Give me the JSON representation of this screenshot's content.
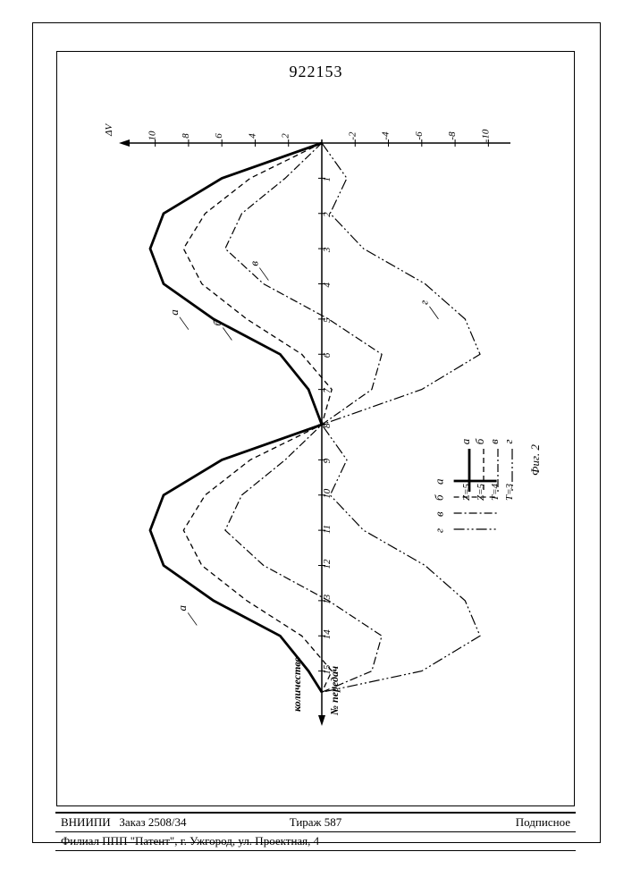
{
  "patent_number": "922153",
  "chart": {
    "type": "line",
    "y_axis": {
      "label": "ΔV",
      "ticks": [
        10,
        8,
        6,
        4,
        2,
        -2,
        -4,
        -6,
        -8,
        -10
      ],
      "range": [
        -11,
        11
      ]
    },
    "x_axis": {
      "label_top": "количество",
      "label_bottom": "№ передач",
      "ticks": [
        1,
        2,
        3,
        4,
        5,
        6,
        7,
        8,
        9,
        10,
        11,
        12,
        13,
        14,
        15
      ],
      "range": [
        0,
        16
      ]
    },
    "series": [
      {
        "id": "a",
        "label": "а",
        "legend_value": "Z=5",
        "stroke": "#000",
        "stroke_width": 2.8,
        "dash": "",
        "points": [
          [
            0,
            0
          ],
          [
            1,
            6
          ],
          [
            2,
            9.5
          ],
          [
            3,
            10.3
          ],
          [
            4,
            9.5
          ],
          [
            5,
            6.5
          ],
          [
            6,
            2.5
          ],
          [
            7,
            0.8
          ],
          [
            8,
            0
          ],
          [
            9,
            6
          ],
          [
            10,
            9.5
          ],
          [
            11,
            10.3
          ],
          [
            12,
            9.5
          ],
          [
            13,
            6.5
          ],
          [
            14,
            2.5
          ],
          [
            15,
            0.8
          ],
          [
            15.6,
            0
          ]
        ]
      },
      {
        "id": "b",
        "label": "б",
        "legend_value": "Z=5",
        "stroke": "#000",
        "stroke_width": 1.3,
        "dash": "6,4",
        "points": [
          [
            0,
            0
          ],
          [
            1,
            4.3
          ],
          [
            2,
            7
          ],
          [
            3,
            8.3
          ],
          [
            4,
            7.2
          ],
          [
            5,
            4.5
          ],
          [
            6,
            1.2
          ],
          [
            7,
            -0.6
          ],
          [
            8,
            0
          ],
          [
            9,
            4.3
          ],
          [
            10,
            7
          ],
          [
            11,
            8.3
          ],
          [
            12,
            7.2
          ],
          [
            13,
            4.5
          ],
          [
            14,
            1.2
          ],
          [
            15,
            -0.6
          ],
          [
            15.6,
            0
          ]
        ]
      },
      {
        "id": "v",
        "label": "в",
        "legend_value": "T=4",
        "stroke": "#000",
        "stroke_width": 1.2,
        "dash": "9,3,2,3",
        "points": [
          [
            0,
            0
          ],
          [
            1,
            2.2
          ],
          [
            2,
            4.8
          ],
          [
            3,
            5.8
          ],
          [
            4,
            3.5
          ],
          [
            5,
            -0.4
          ],
          [
            6,
            -3.6
          ],
          [
            7,
            -3.0
          ],
          [
            8,
            0
          ],
          [
            9,
            2.2
          ],
          [
            10,
            4.8
          ],
          [
            11,
            5.8
          ],
          [
            12,
            3.5
          ],
          [
            13,
            -0.4
          ],
          [
            14,
            -3.6
          ],
          [
            15,
            -3.0
          ],
          [
            15.6,
            0
          ]
        ]
      },
      {
        "id": "g",
        "label": "г",
        "legend_value": "T=3",
        "stroke": "#000",
        "stroke_width": 1.2,
        "dash": "12,3,2,3,2,3",
        "points": [
          [
            0,
            0
          ],
          [
            1,
            -1.5
          ],
          [
            2,
            -0.5
          ],
          [
            3,
            -2.5
          ],
          [
            4,
            -6.2
          ],
          [
            5,
            -8.6
          ],
          [
            6,
            -9.5
          ],
          [
            7,
            -6.0
          ],
          [
            8,
            0
          ],
          [
            9,
            -1.5
          ],
          [
            10,
            -0.5
          ],
          [
            11,
            -2.5
          ],
          [
            12,
            -6.2
          ],
          [
            13,
            -8.6
          ],
          [
            14,
            -9.5
          ],
          [
            15,
            -6.0
          ],
          [
            15.6,
            0
          ]
        ]
      }
    ],
    "curve_callouts": [
      {
        "label": "а",
        "x": 5.3,
        "y": 8.0
      },
      {
        "label": "б",
        "x": 5.6,
        "y": 5.4
      },
      {
        "label": "в",
        "x": 3.9,
        "y": 3.2
      },
      {
        "label": "г",
        "x": 5.0,
        "y": -7.0
      },
      {
        "label": "а",
        "x": 13.7,
        "y": 7.5
      }
    ],
    "fig_label": "Фиг. 2",
    "background": "#ffffff"
  },
  "legend": {
    "items": [
      {
        "label": "а",
        "value": "Z=5",
        "dash": "",
        "width": 2.8
      },
      {
        "label": "б",
        "value": "Z=5",
        "dash": "6,4",
        "width": 1.3
      },
      {
        "label": "в",
        "value": "T=4",
        "dash": "9,3,2,3",
        "width": 1.2
      },
      {
        "label": "г",
        "value": "T=3",
        "dash": "12,3,2,3,2,3",
        "width": 1.2
      }
    ]
  },
  "footer": {
    "org": "ВНИИПИ",
    "order": "Заказ 2508/34",
    "tirazh": "Тираж 587",
    "subscription": "Подписное",
    "address": "Филиал ППП \"Патент\", г. Ужгород, ул. Проектная, 4"
  }
}
